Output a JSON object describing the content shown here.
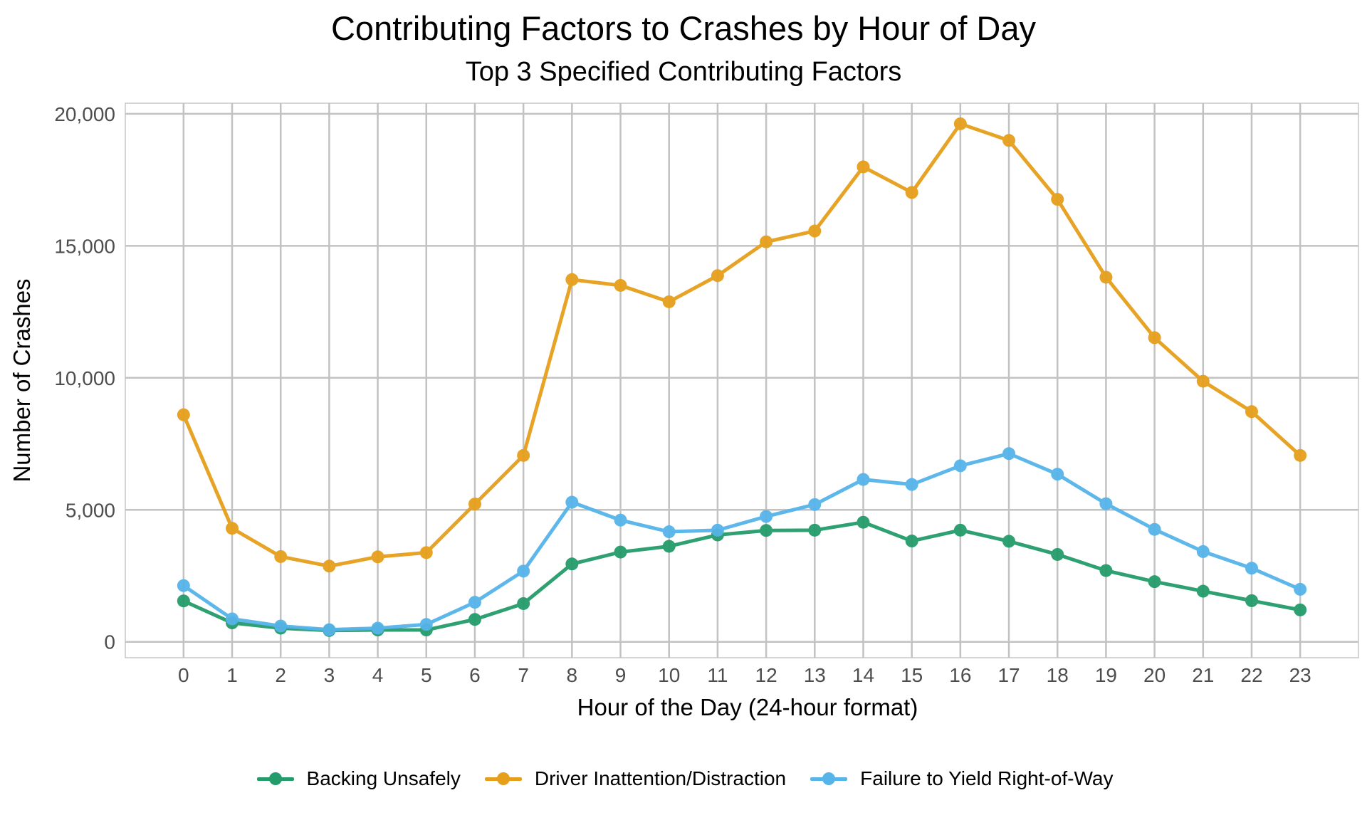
{
  "chart_data": {
    "type": "line",
    "title": "Contributing Factors to Crashes by Hour of Day",
    "subtitle": "Top 3 Specified Contributing Factors",
    "xlabel": "Hour of the Day (24-hour format)",
    "ylabel": "Number of Crashes",
    "x": [
      0,
      1,
      2,
      3,
      4,
      5,
      6,
      7,
      8,
      9,
      10,
      11,
      12,
      13,
      14,
      15,
      16,
      17,
      18,
      19,
      20,
      21,
      22,
      23
    ],
    "ylim": [
      -600,
      20400
    ],
    "yticks": [
      0,
      5000,
      10000,
      15000,
      20000
    ],
    "ytick_labels": [
      "0",
      "5,000",
      "10,000",
      "15,000",
      "20,000"
    ],
    "grid": true,
    "legend_position": "bottom",
    "series": [
      {
        "name": "Backing Unsafely",
        "color": "#239b6a",
        "values": [
          1550,
          720,
          520,
          430,
          450,
          450,
          850,
          1450,
          2950,
          3400,
          3620,
          4050,
          4220,
          4230,
          4530,
          3820,
          4230,
          3810,
          3310,
          2700,
          2280,
          1920,
          1560,
          1210
        ]
      },
      {
        "name": "Driver Inattention/Distraction",
        "color": "#e69f1a",
        "values": [
          8600,
          4300,
          3230,
          2870,
          3220,
          3380,
          5220,
          7060,
          13720,
          13500,
          12880,
          13870,
          15150,
          15560,
          17990,
          17020,
          19620,
          18990,
          16760,
          13810,
          11520,
          9870,
          8720,
          7060
        ]
      },
      {
        "name": "Failure to Yield Right-of-Way",
        "color": "#56b4e9",
        "values": [
          2130,
          870,
          600,
          460,
          520,
          660,
          1500,
          2680,
          5290,
          4610,
          4170,
          4230,
          4750,
          5200,
          6150,
          5960,
          6670,
          7130,
          6350,
          5230,
          4260,
          3420,
          2790,
          1990
        ]
      }
    ]
  }
}
